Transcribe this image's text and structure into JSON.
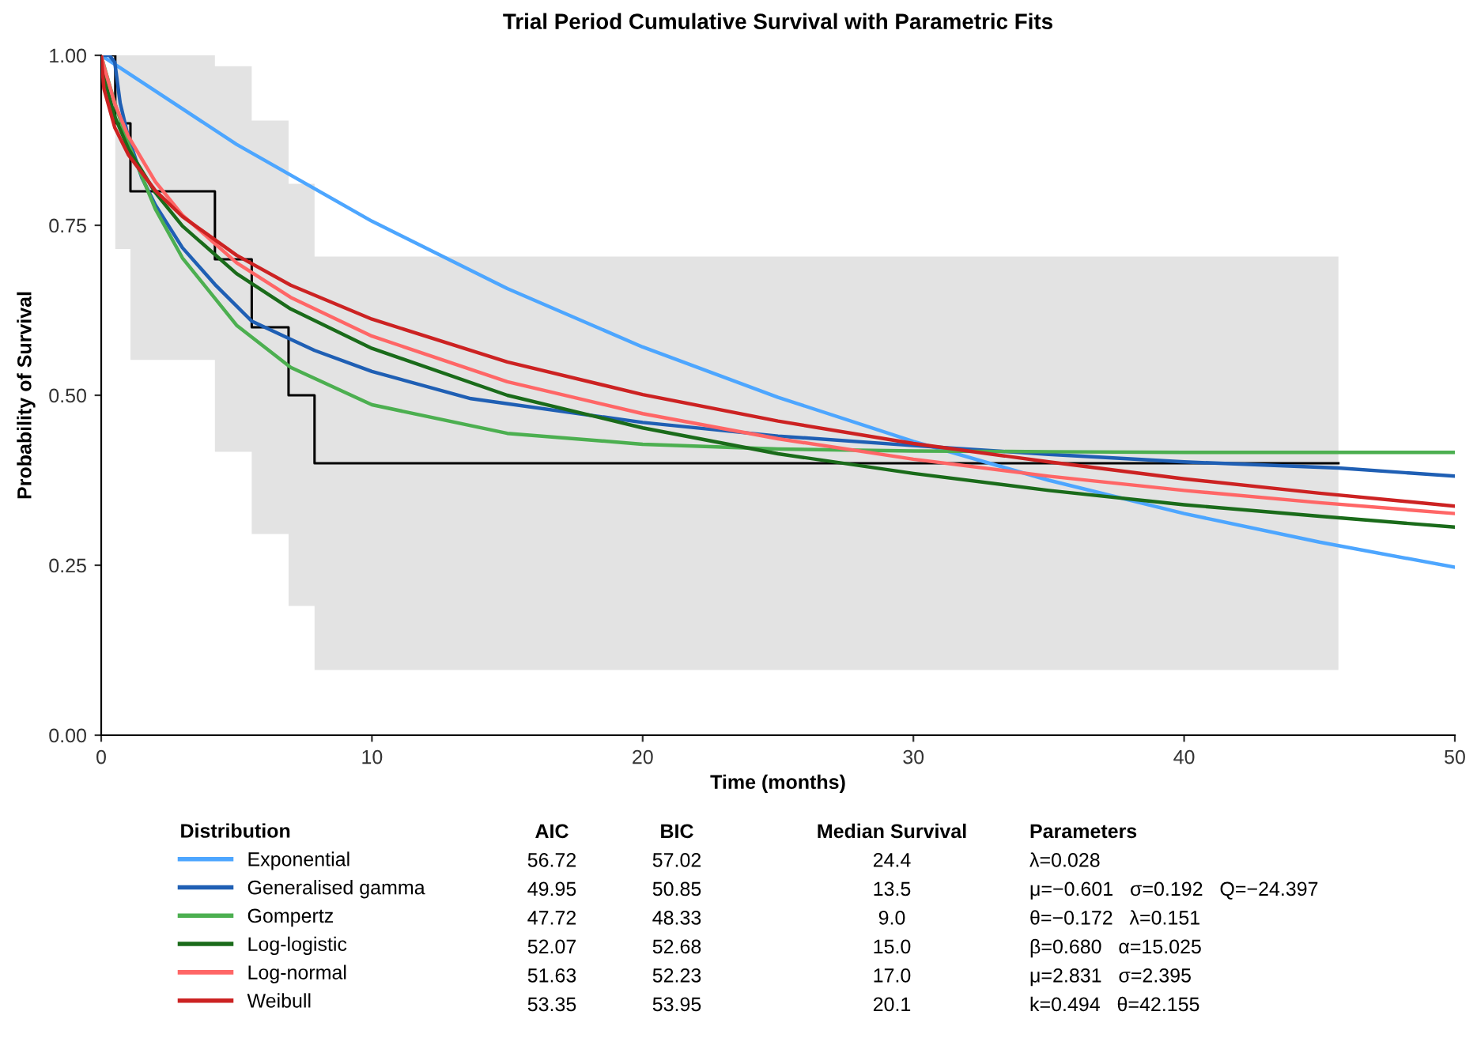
{
  "chart_data": {
    "type": "line",
    "title": "Trial Period Cumulative Survival with Parametric Fits",
    "xlabel": "Time (months)",
    "ylabel": "Probability of Survival",
    "legend_title": "Distribution",
    "legend": "bottom",
    "grid": false,
    "marker": "none",
    "line_style": "solid",
    "xlim": [
      0,
      50
    ],
    "xticks": [
      0,
      10,
      20,
      30,
      40,
      50
    ],
    "ylim": [
      0,
      1
    ],
    "yticks": [
      {
        "value": 0,
        "label": "0.00"
      },
      {
        "value": 0.25,
        "label": "0.25"
      },
      {
        "value": 0.5,
        "label": "0.50"
      },
      {
        "value": 0.75,
        "label": "0.75"
      },
      {
        "value": 1,
        "label": "1.00"
      }
    ],
    "series": [
      {
        "type": "step",
        "color": "#000000",
        "x": [
          0,
          0.52,
          1.08,
          4.2,
          5.56,
          6.92,
          7.88,
          45.7
        ],
        "values": [
          1,
          0.9,
          0.8,
          0.7,
          0.6,
          0.5,
          0.4,
          0.4
        ],
        "lower": [
          1,
          0.715,
          0.552,
          0.417,
          0.296,
          0.19,
          0.096,
          0.096
        ],
        "upper": [
          1,
          1,
          1,
          0.984,
          0.904,
          0.811,
          0.704,
          0.704
        ]
      },
      {
        "name": "Exponential",
        "color": "#4da6ff",
        "x": [
          0,
          5,
          10,
          15,
          20,
          25,
          30,
          35,
          40,
          45,
          50
        ],
        "values": [
          1,
          0.869,
          0.756,
          0.657,
          0.571,
          0.497,
          0.432,
          0.375,
          0.326,
          0.284,
          0.247
        ]
      },
      {
        "name": "Generalised gamma",
        "color": "#1f5fb4",
        "x": [
          0,
          0.3,
          0.5,
          0.7,
          1,
          1.5,
          2,
          3,
          4.2,
          5.56,
          7.88,
          10,
          13.66,
          20,
          25,
          30,
          35,
          40,
          45.7,
          50
        ],
        "values": [
          1,
          1,
          0.99,
          0.93,
          0.88,
          0.82,
          0.78,
          0.717,
          0.663,
          0.609,
          0.566,
          0.535,
          0.495,
          0.46,
          0.44,
          0.426,
          0.413,
          0.402,
          0.393,
          0.381
        ]
      },
      {
        "name": "Gompertz",
        "color": "#4caf50",
        "x": [
          0,
          0.1,
          0.5,
          1,
          2,
          3,
          5,
          7,
          10,
          15,
          20,
          25,
          30,
          35,
          40,
          45,
          50
        ],
        "values": [
          1,
          0.985,
          0.93,
          0.87,
          0.774,
          0.702,
          0.603,
          0.541,
          0.486,
          0.444,
          0.428,
          0.421,
          0.418,
          0.417,
          0.416,
          0.416,
          0.416
        ]
      },
      {
        "name": "Log-logistic",
        "color": "#1a6b1a",
        "x": [
          0,
          0.1,
          0.5,
          1,
          2,
          3,
          5,
          7,
          10,
          15,
          20,
          25,
          30,
          35,
          40,
          45,
          50
        ],
        "values": [
          1,
          0.968,
          0.91,
          0.863,
          0.798,
          0.749,
          0.679,
          0.627,
          0.569,
          0.5,
          0.452,
          0.414,
          0.385,
          0.36,
          0.339,
          0.322,
          0.306
        ]
      },
      {
        "name": "Log-normal",
        "color": "#ff6666",
        "x": [
          0,
          0.1,
          0.5,
          1,
          2,
          3,
          5,
          7,
          10,
          15,
          20,
          25,
          30,
          35,
          40,
          45,
          50
        ],
        "values": [
          1,
          0.984,
          0.929,
          0.881,
          0.814,
          0.765,
          0.695,
          0.644,
          0.587,
          0.52,
          0.473,
          0.436,
          0.406,
          0.381,
          0.36,
          0.342,
          0.326
        ]
      },
      {
        "name": "Weibull",
        "color": "#cc2222",
        "x": [
          0,
          0.1,
          0.5,
          1,
          2,
          3,
          5,
          7,
          10,
          15,
          20,
          25,
          30,
          35,
          40,
          45,
          50
        ],
        "values": [
          1,
          0.951,
          0.894,
          0.854,
          0.801,
          0.763,
          0.706,
          0.662,
          0.612,
          0.549,
          0.501,
          0.462,
          0.429,
          0.402,
          0.377,
          0.356,
          0.337
        ]
      }
    ],
    "annotations": [
      "AIC",
      "BIC",
      "Median Survival",
      "Parameters",
      "56.72",
      "57.02",
      "24.4",
      "λ=0.028",
      "49.95",
      "50.85",
      "13.5",
      "μ=−0.601   σ=0.192   Q=−24.397",
      "47.72",
      "48.33",
      "9.0",
      "θ=−0.172   λ=0.151",
      "52.07",
      "52.68",
      "15.0",
      "β=0.680   α=15.025",
      "51.63",
      "52.23",
      "17.0",
      "μ=2.831   σ=2.395",
      "53.35",
      "53.95",
      "20.1",
      "k=0.494   θ=42.155"
    ]
  }
}
